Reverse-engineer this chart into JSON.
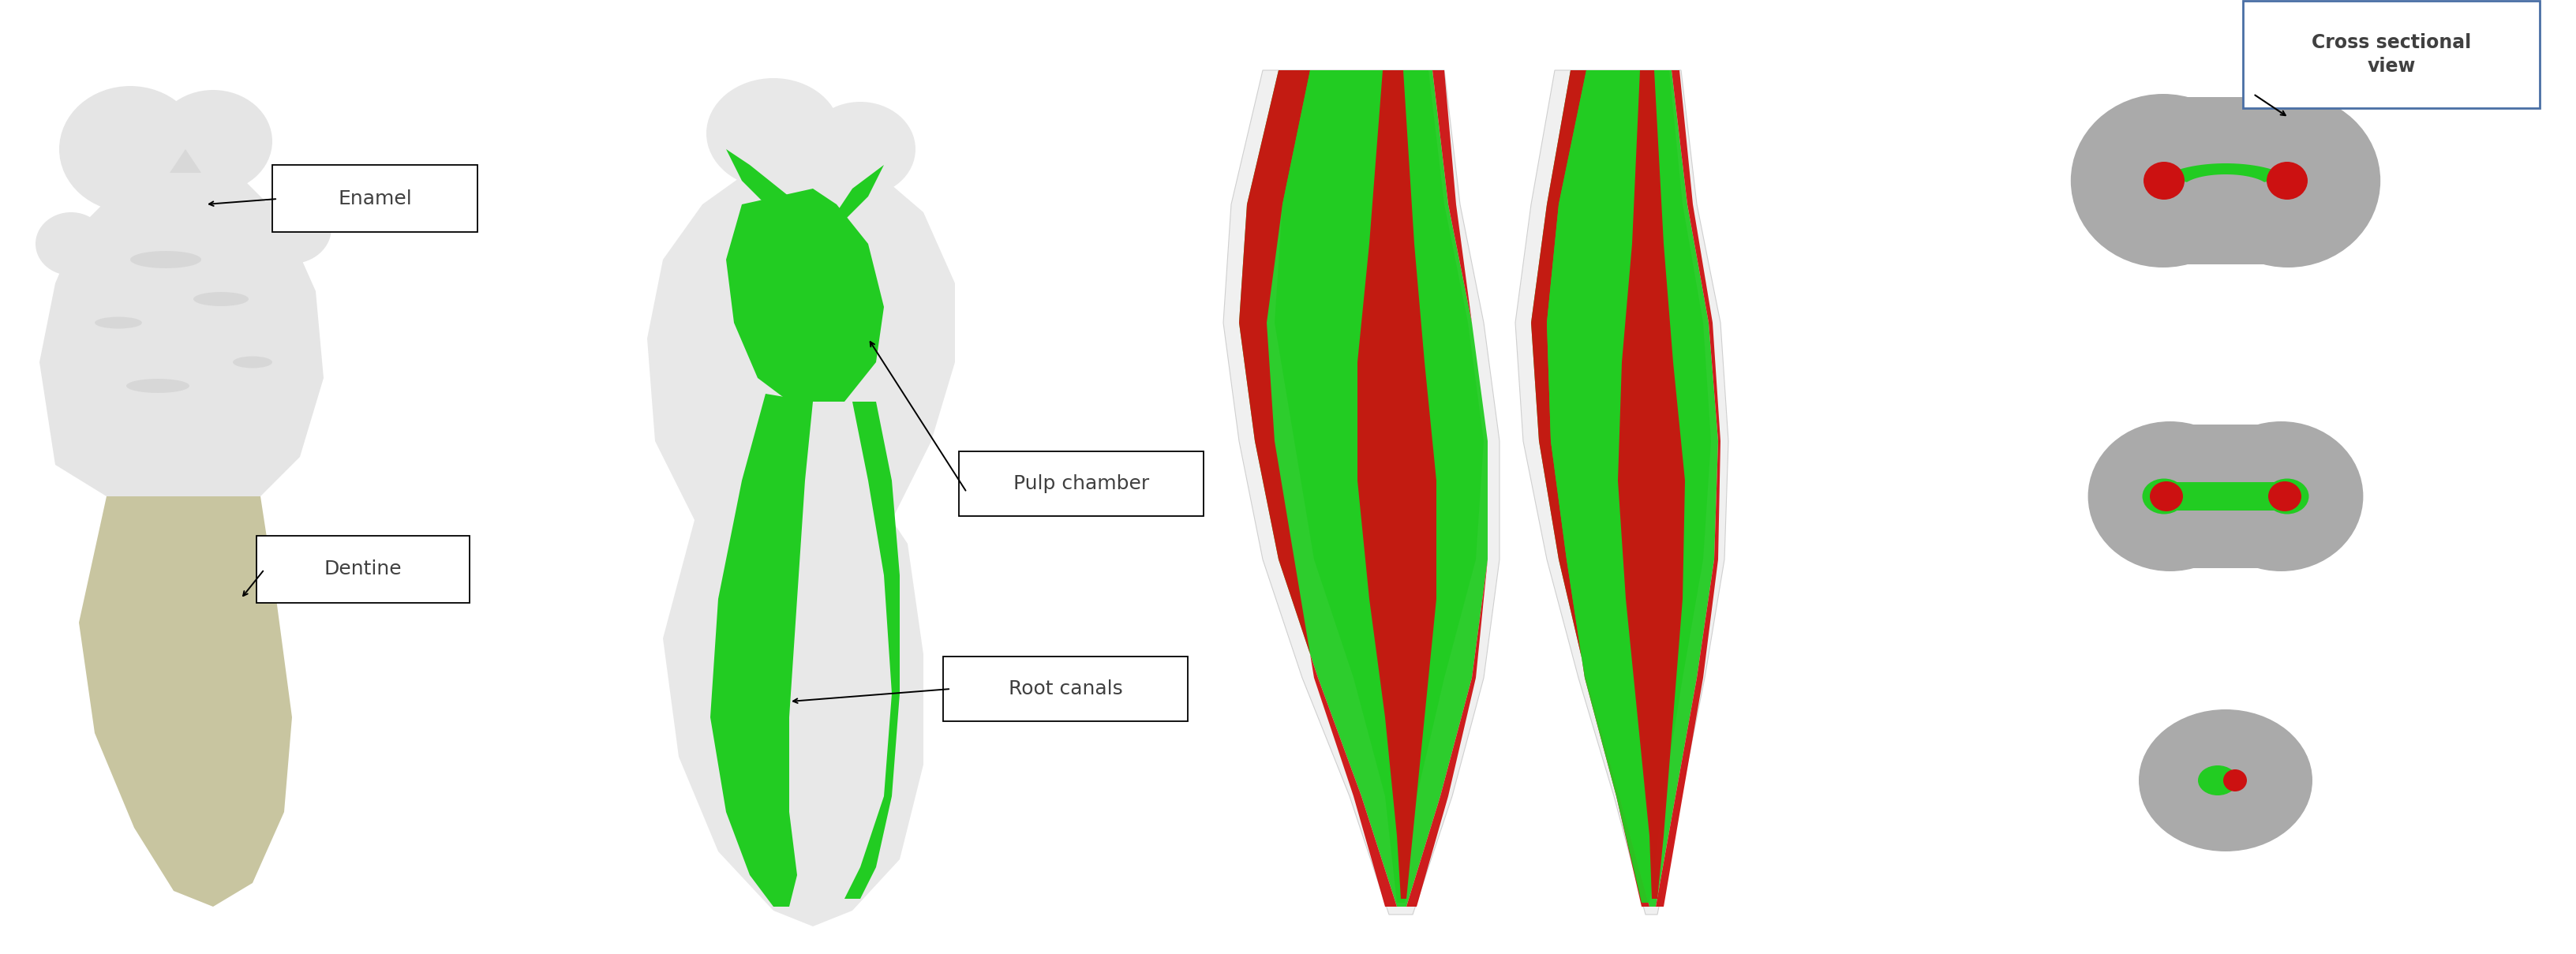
{
  "bg_color": "#ffffff",
  "fig_width": 32.64,
  "fig_height": 12.09,
  "label_enamel": "Enamel",
  "label_dentine": "Dentine",
  "label_pulp": "Pulp chamber",
  "label_root": "Root canals",
  "label_cross": "Cross sectional\nview",
  "box_edge_color": "#4a6fa5",
  "text_color": "#404040",
  "tooth1_crown_color": "#e5e5e5",
  "tooth1_root_color": "#c8c5a0",
  "tooth2_color": "#e8e8e8",
  "green_pulp": "#22cc22",
  "red_canal": "#cc1111",
  "gray_section": "#aaaaaa",
  "light_gray": "#cccccc",
  "long_outer": "#e8e8e8",
  "long_green": "#22cc22",
  "long_red": "#cc1111"
}
